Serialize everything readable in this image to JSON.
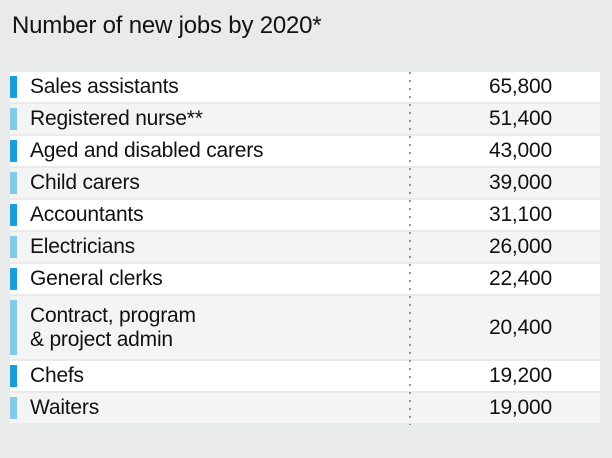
{
  "title": "Number of new jobs by 2020*",
  "chart_data": {
    "type": "table",
    "title": "Number of new jobs by 2020*",
    "categories": [
      "Sales assistants",
      "Registered nurse**",
      "Aged and disabled carers",
      "Child carers",
      "Accountants",
      "Electricians",
      "General clerks",
      "Contract, program & project admin",
      "Chefs",
      "Waiters"
    ],
    "values": [
      65800,
      51400,
      43000,
      39000,
      31100,
      26000,
      22400,
      20400,
      19200,
      19000
    ],
    "value_labels": [
      "65,800",
      "51,400",
      "43,000",
      "39,000",
      "31,100",
      "26,000",
      "22,400",
      "20,400",
      "19,200",
      "19,000"
    ],
    "grid": false,
    "legend_position": "none"
  },
  "rows": [
    {
      "label": "Sales assistants",
      "value": "65,800",
      "bar_color": "dark-blue"
    },
    {
      "label": "Registered nurse**",
      "value": "51,400",
      "bar_color": "light-blue"
    },
    {
      "label": "Aged and disabled carers",
      "value": "43,000",
      "bar_color": "dark-blue"
    },
    {
      "label": "Child carers",
      "value": "39,000",
      "bar_color": "light-blue"
    },
    {
      "label": "Accountants",
      "value": "31,100",
      "bar_color": "dark-blue"
    },
    {
      "label": "Electricians",
      "value": "26,000",
      "bar_color": "light-blue"
    },
    {
      "label": "General clerks",
      "value": "22,400",
      "bar_color": "dark-blue"
    },
    {
      "label": "Contract, program\n& project admin",
      "value": "20,400",
      "bar_color": "light-blue"
    },
    {
      "label": "Chefs",
      "value": "19,200",
      "bar_color": "dark-blue"
    },
    {
      "label": "Waiters",
      "value": "19,000",
      "bar_color": "light-blue"
    }
  ],
  "colors": {
    "background": "#e9eaea",
    "row_white": "#ffffff",
    "row_gray": "#f4f4f4",
    "bar_dark_blue": "#1b9dd9",
    "bar_light_blue": "#85c9ec",
    "text": "#111111",
    "dotted_line": "#8f8f8f"
  }
}
